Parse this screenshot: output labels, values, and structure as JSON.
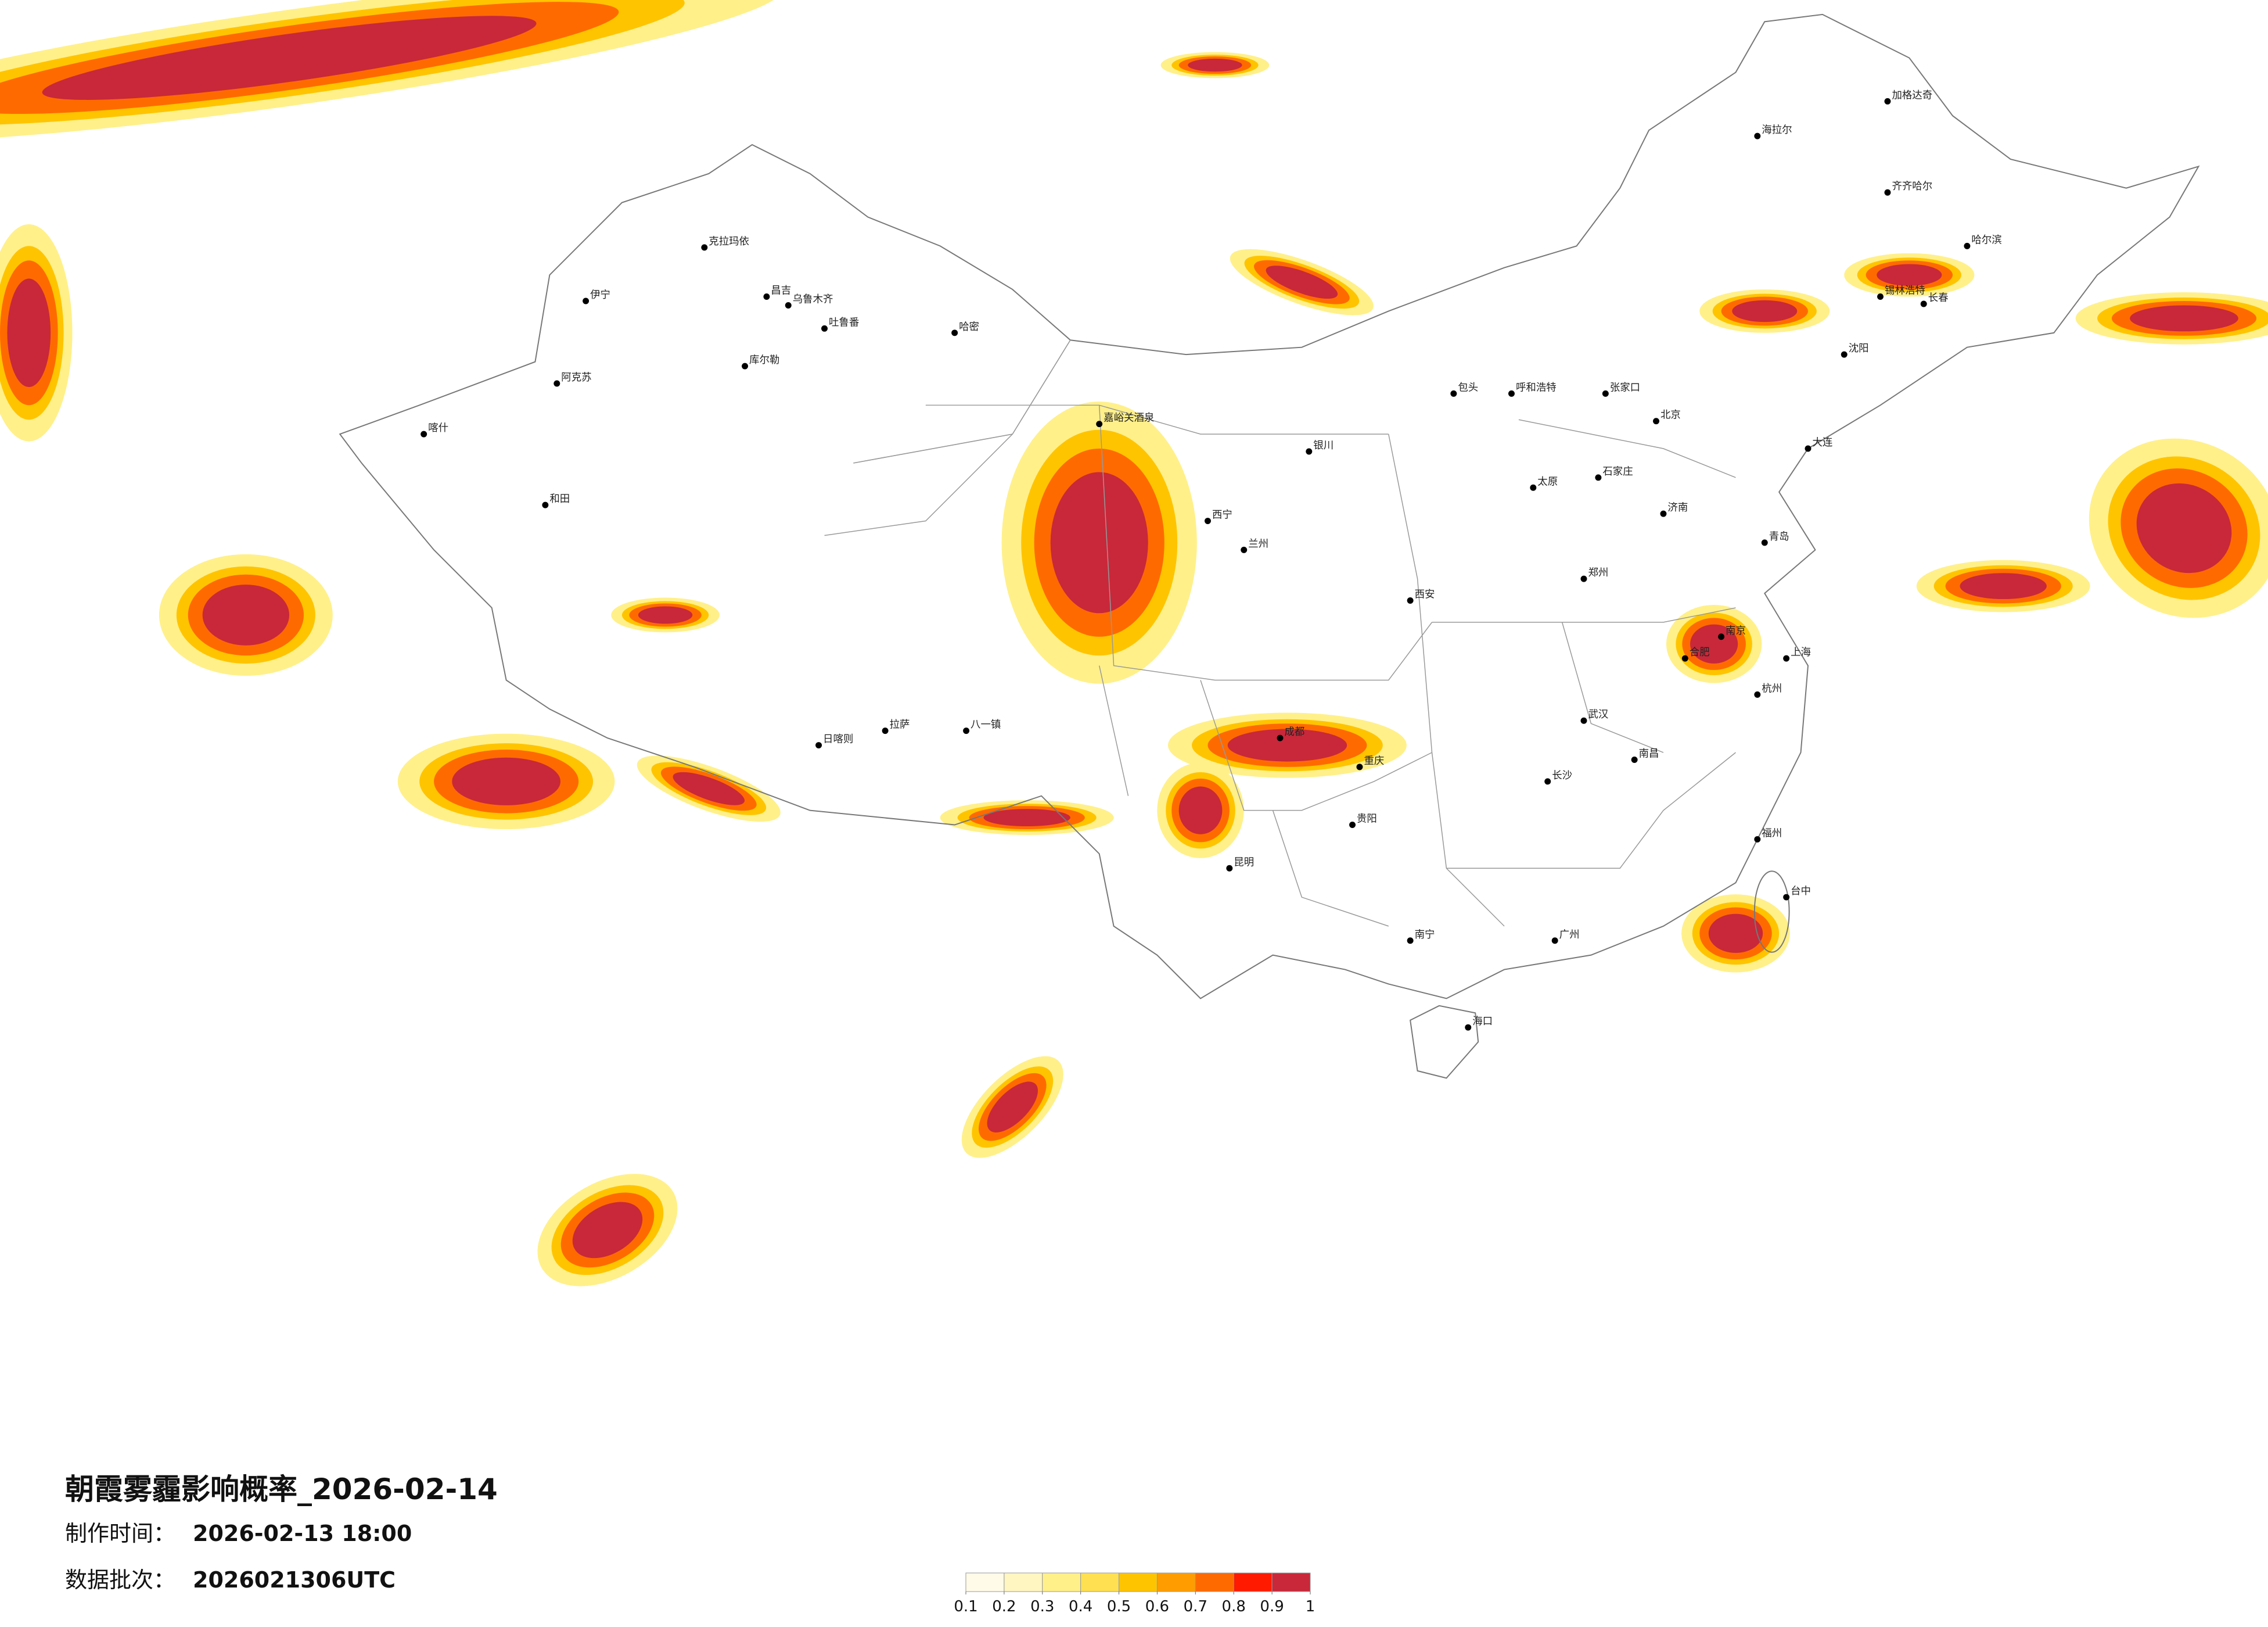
{
  "title": "朝霞雾霾影响概率_2026-02-14",
  "production": {
    "label": "制作时间：",
    "value": "2026-02-13 18:00"
  },
  "batch": {
    "label": "数据批次：",
    "value": "2026021306UTC"
  },
  "legend": {
    "colors": [
      "#fffbe8",
      "#fff6c2",
      "#fff08a",
      "#ffe050",
      "#ffc400",
      "#ff9d00",
      "#ff6a00",
      "#ff1a00",
      "#c8283a"
    ],
    "ticks": [
      0.1,
      0.2,
      0.3,
      0.4,
      0.5,
      0.6,
      0.7,
      0.8,
      0.9,
      1
    ]
  },
  "cities": [
    "伊宁",
    "克拉玛依",
    "昌吉",
    "乌鲁木齐",
    "吐鲁番",
    "哈密",
    "库尔勒",
    "阿克苏",
    "喀什",
    "和田",
    "日喀则",
    "拉萨",
    "八一镇",
    "嘉峪关酒泉",
    "西宁",
    "兰州",
    "银川",
    "包头",
    "呼和浩特",
    "张家口",
    "北京",
    "石家庄",
    "太原",
    "济南",
    "青岛",
    "郑州",
    "西安",
    "武汉",
    "合肥",
    "南京",
    "上海",
    "杭州",
    "成都",
    "重庆",
    "贵阳",
    "昆明",
    "南宁",
    "广州",
    "福州",
    "长沙",
    "南昌",
    "台中",
    "海口",
    "哈尔滨",
    "长春",
    "沈阳",
    "大连",
    "齐齐哈尔",
    "海拉尔",
    "加格达奇",
    "锡林浩特"
  ]
}
